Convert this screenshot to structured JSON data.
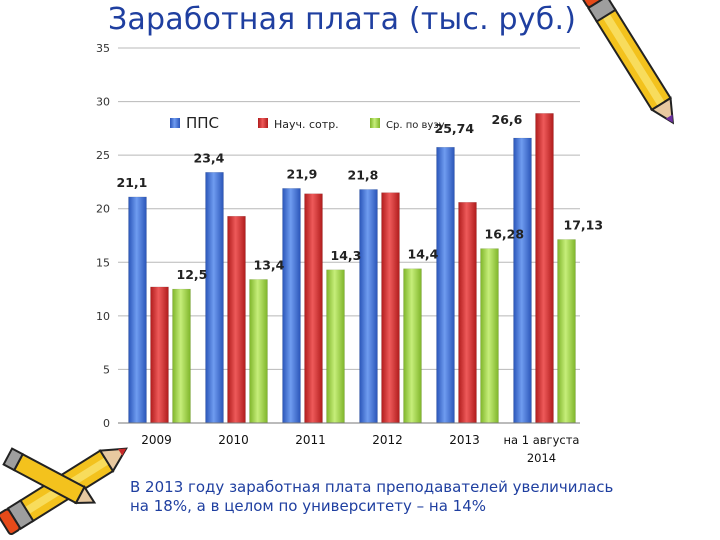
{
  "slide": {
    "title": "Заработная плата (тыс. руб.)",
    "caption_line1": "В 2013 году заработная плата преподавателей увеличилась",
    "caption_line2": "на 18%, а в целом по университету – на 14%"
  },
  "colors": {
    "pps": "#3d6fd4",
    "nauch": "#d42f2f",
    "vuz": "#9bd040"
  },
  "chart_data": {
    "type": "bar",
    "title": "Заработная плата (тыс. руб.)",
    "categories": [
      "2009",
      "2010",
      "2011",
      "2012",
      "2013",
      "на 1 августа 2014"
    ],
    "series": [
      {
        "name": "ППС",
        "values": [
          21.1,
          23.4,
          21.9,
          21.8,
          25.74,
          26.6
        ]
      },
      {
        "name": "Науч. сотр.",
        "values": [
          12.7,
          19.3,
          21.4,
          21.5,
          20.6,
          28.9
        ]
      },
      {
        "name": "Ср. по вузу",
        "values": [
          12.5,
          13.4,
          14.3,
          14.4,
          16.28,
          17.13
        ]
      }
    ],
    "data_labels": [
      "21,1",
      "12,5",
      "23,4",
      "13,4",
      "21,9",
      "14,3",
      "21,8",
      "14,4",
      "25,74",
      "16,28",
      "26,6",
      "17,13"
    ],
    "yticks": [
      "0",
      "5",
      "10",
      "15",
      "20",
      "25",
      "30",
      "35"
    ],
    "ylim": [
      0,
      35
    ],
    "grid": true,
    "legend": "top"
  }
}
